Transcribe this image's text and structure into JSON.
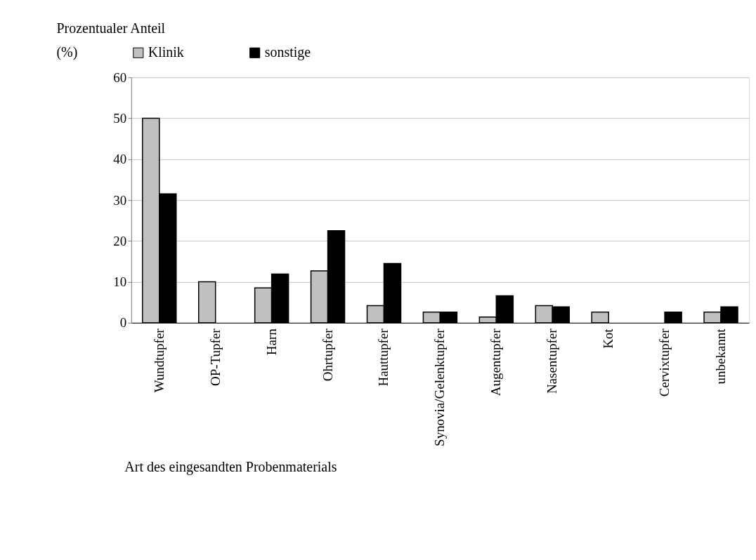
{
  "chart_data": {
    "type": "bar",
    "ylabel": "Prozentualer Anteil (%)",
    "xlabel": "Art des eingesandten Probenmaterials",
    "categories": [
      "Wundtupfer",
      "OP-Tupfer",
      "Harn",
      "Ohrtupfer",
      "Hauttupfer",
      "Synovia/Gelenktupfer",
      "Augentupfer",
      "Nasentupfer",
      "Kot",
      "Cervixtupfer",
      "unbekannt"
    ],
    "series": [
      {
        "name": "Klinik",
        "color": "#c0c0c0",
        "values": [
          50,
          10,
          8.5,
          12.7,
          4.2,
          2.6,
          1.4,
          4.2,
          2.6,
          0,
          2.6
        ]
      },
      {
        "name": "sonstige",
        "color": "#000000",
        "values": [
          31.5,
          0,
          11.9,
          22.5,
          14.5,
          2.6,
          6.6,
          3.9,
          0,
          2.6,
          3.9
        ]
      }
    ],
    "ylim": [
      0,
      60
    ],
    "yticks": [
      0,
      10,
      20,
      30,
      40,
      50,
      60
    ],
    "grid": "y",
    "legend": "top"
  }
}
